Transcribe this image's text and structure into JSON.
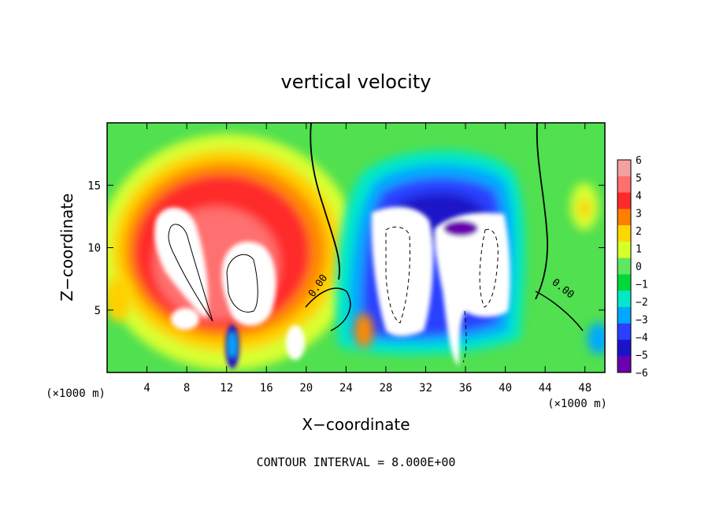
{
  "chart_data": {
    "type": "heatmap",
    "title": "vertical velocity",
    "xlabel": "X−coordinate",
    "ylabel": "Z−coordinate",
    "x_unit_left": "(×1000 m)",
    "x_unit_right": "(×1000 m)",
    "footer": "CONTOUR INTERVAL = 8.000E+00",
    "xlim": [
      0,
      50
    ],
    "ylim": [
      0,
      20
    ],
    "x_ticks": [
      "4",
      "8",
      "12",
      "16",
      "20",
      "24",
      "28",
      "32",
      "36",
      "40",
      "44",
      "48"
    ],
    "x_tick_values": [
      4,
      8,
      12,
      16,
      20,
      24,
      28,
      32,
      36,
      40,
      44,
      48
    ],
    "y_ticks": [
      "5",
      "10",
      "15"
    ],
    "y_tick_values": [
      5,
      10,
      15
    ],
    "contour_labels": [
      "0.00",
      "0.00"
    ],
    "colorbar": {
      "levels": [
        "6",
        "5",
        "4",
        "3",
        "2",
        "1",
        "0",
        "−1",
        "−2",
        "−3",
        "−4",
        "−5",
        "−6"
      ],
      "colors": [
        "#f4a0a0",
        "#ff6f6f",
        "#ff2a2a",
        "#ff7f00",
        "#ffd700",
        "#d7ff2a",
        "#5fe85f",
        "#00d73a",
        "#00e8c8",
        "#00a8ff",
        "#2a3fff",
        "#1a14c8",
        "#6a00b0"
      ]
    }
  }
}
